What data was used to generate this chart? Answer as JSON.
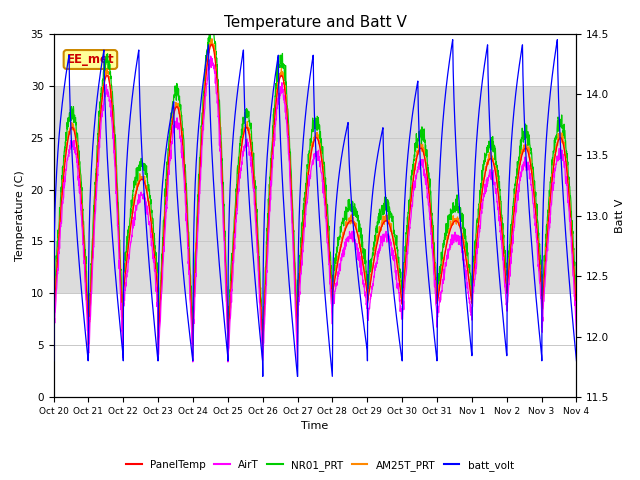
{
  "title": "Temperature and Batt V",
  "ylabel_left": "Temperature (C)",
  "ylabel_right": "Batt V",
  "xlabel": "Time",
  "xlim_start": 0,
  "xlim_end": 15,
  "ylim_left": [
    0,
    35
  ],
  "ylim_right": [
    11.5,
    14.5
  ],
  "yticks_left": [
    0,
    5,
    10,
    15,
    20,
    25,
    30,
    35
  ],
  "yticks_right": [
    11.5,
    12.0,
    12.5,
    13.0,
    13.5,
    14.0,
    14.5
  ],
  "xtick_labels": [
    "Oct 20",
    "Oct 21",
    "Oct 22",
    "Oct 23",
    "Oct 24",
    "Oct 25",
    "Oct 26",
    "Oct 27",
    "Oct 28",
    "Oct 29",
    "Oct 30",
    "Oct 31",
    "Nov 1",
    "Nov 2",
    "Nov 3",
    "Nov 4"
  ],
  "legend_entries": [
    "PanelTemp",
    "AirT",
    "NR01_PRT",
    "AM25T_PRT",
    "batt_volt"
  ],
  "legend_colors": [
    "#ff0000",
    "#ff00ff",
    "#00cc00",
    "#ff8800",
    "#0000ff"
  ],
  "annotation_text": "EE_met",
  "annotation_color": "#cc0000",
  "annotation_bg": "#ffff99",
  "annotation_border": "#cc8800",
  "grid_color": "#c8c8c8",
  "shaded_band_low": 10,
  "shaded_band_high": 30,
  "shaded_color": "#dcdcdc",
  "background_color": "#ffffff",
  "title_fontsize": 11,
  "day_peaks_temp": [
    26,
    31,
    21,
    28,
    34,
    26,
    31,
    25,
    17,
    17,
    24,
    17,
    23,
    24,
    25,
    24
  ],
  "day_troughs_temp": [
    7,
    5,
    10,
    5,
    7,
    5,
    5,
    9,
    10,
    9,
    9,
    9,
    10,
    10,
    8,
    8
  ],
  "batt_peaks": [
    33.0,
    33.5,
    33.5,
    28.5,
    34.0,
    33.5,
    33.0,
    33.0,
    26.5,
    26.0,
    30.5,
    34.5,
    34.0,
    34.0,
    34.5,
    34.5
  ],
  "batt_troughs": [
    3.5,
    4.0,
    3.5,
    3.5,
    4.0,
    3.5,
    2.0,
    2.0,
    4.5,
    3.5,
    3.5,
    4.0,
    4.0,
    4.0,
    3.5,
    3.5
  ]
}
